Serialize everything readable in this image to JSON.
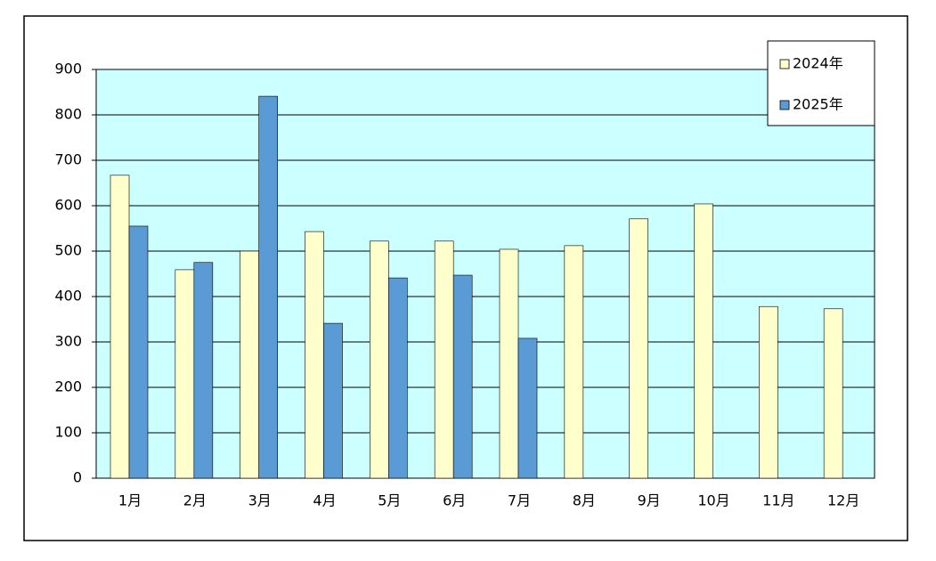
{
  "chart_data": {
    "type": "bar",
    "categories": [
      "1月",
      "2月",
      "3月",
      "4月",
      "5月",
      "6月",
      "7月",
      "8月",
      "9月",
      "10月",
      "11月",
      "12月"
    ],
    "series": [
      {
        "name": "2024年",
        "color": "#ffffcc",
        "values": [
          667,
          459,
          500,
          543,
          522,
          522,
          504,
          512,
          571,
          604,
          378,
          373
        ]
      },
      {
        "name": "2025年",
        "color": "#5b9bd5",
        "values": [
          555,
          475,
          841,
          341,
          441,
          447,
          308,
          null,
          null,
          null,
          null,
          null
        ]
      }
    ],
    "ylim": [
      0,
      900
    ],
    "yticks": [
      0,
      100,
      200,
      300,
      400,
      500,
      600,
      700,
      800,
      900
    ],
    "grid": true,
    "legend": "top-right",
    "plot_background": "#ccffff"
  }
}
